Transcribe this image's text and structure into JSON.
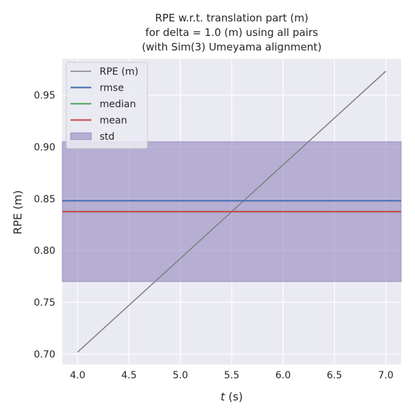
{
  "chart_data": {
    "type": "line",
    "title_lines": [
      "RPE w.r.t. translation part (m)",
      "for delta = 1.0 (m) using all pairs",
      "(with Sim(3) Umeyama alignment)"
    ],
    "xlabel_var": "t",
    "xlabel_unit": " (s)",
    "ylabel": "RPE (m)",
    "xlim": [
      3.85,
      7.15
    ],
    "ylim": [
      0.69,
      0.985
    ],
    "x_ticks": [
      4.0,
      4.5,
      5.0,
      5.5,
      6.0,
      6.5,
      7.0
    ],
    "x_tick_labels": [
      "4.0",
      "4.5",
      "5.0",
      "5.5",
      "6.0",
      "6.5",
      "7.0"
    ],
    "y_ticks": [
      0.7,
      0.75,
      0.8,
      0.85,
      0.9,
      0.95
    ],
    "y_tick_labels": [
      "0.70",
      "0.75",
      "0.80",
      "0.85",
      "0.90",
      "0.95"
    ],
    "grid": true,
    "legend_position": "top-left",
    "series": [
      {
        "name": "RPE (m)",
        "kind": "line",
        "color": "#808080",
        "x": [
          4.0,
          7.0
        ],
        "y": [
          0.702,
          0.973
        ]
      },
      {
        "name": "rmse",
        "kind": "hline",
        "color": "#4c72b0",
        "y": 0.848
      },
      {
        "name": "median",
        "kind": "hline",
        "color": "#55a868",
        "y": 0.8375
      },
      {
        "name": "mean",
        "kind": "hline",
        "color": "#c44e52",
        "y": 0.8375
      },
      {
        "name": "std",
        "kind": "band",
        "color": "#8172b3",
        "y_low": 0.77,
        "y_high": 0.905
      }
    ],
    "legend_order": [
      "RPE (m)",
      "rmse",
      "median",
      "mean",
      "std"
    ],
    "background_color": "#eaeaf2",
    "grid_color": "#ffffff"
  }
}
